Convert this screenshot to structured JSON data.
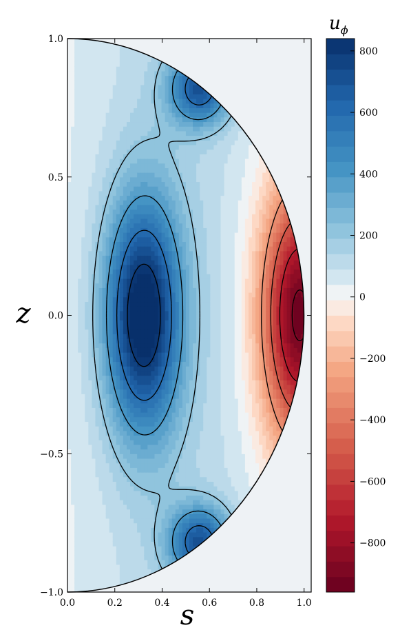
{
  "chart_data": {
    "type": "heatmap",
    "subtype": "filled-contour meridional section with line contours",
    "title": "",
    "xlabel": "s",
    "ylabel": "z",
    "xlim": [
      0.0,
      1.03
    ],
    "ylim": [
      -1.0,
      1.0
    ],
    "x_ticks": [
      0.0,
      0.2,
      0.4,
      0.6,
      0.8,
      1.0
    ],
    "x_tick_labels": [
      "0.0",
      "0.2",
      "0.4",
      "0.6",
      "0.8",
      "1.0"
    ],
    "y_ticks": [
      -1.0,
      -0.5,
      0.0,
      0.5,
      1.0
    ],
    "y_tick_labels": [
      "−1.0",
      "−0.5",
      "0.0",
      "0.5",
      "1.0"
    ],
    "domain_shape": "half-disk s^2 + z^2 <= 1, s >= 0",
    "colorbar": {
      "label_main": "u",
      "label_sub": "ϕ",
      "range": [
        -960,
        840
      ],
      "ticks": [
        800,
        600,
        400,
        200,
        0,
        -200,
        -400,
        -600,
        -800
      ],
      "tick_labels": [
        "800",
        "600",
        "400",
        "200",
        "0",
        "−200",
        "−400",
        "−600",
        "−800"
      ],
      "levels": 36,
      "colormap": "RdBu (positive blue, negative red)",
      "color_positive": "#08306b",
      "color_zero": "#f7f7f7",
      "color_negative": "#67001f"
    },
    "features": [
      {
        "name": "central positive cell",
        "s": 0.32,
        "z": 0.0,
        "value": 840
      },
      {
        "name": "upper positive cell",
        "s": 0.56,
        "z": 0.82,
        "value": 600
      },
      {
        "name": "lower positive cell",
        "s": 0.56,
        "z": -0.82,
        "value": 600
      },
      {
        "name": "equatorial negative jet",
        "s": 0.98,
        "z": 0.0,
        "value": -960
      }
    ],
    "contour_levels_drawn": [
      -900,
      -700,
      -500,
      -300,
      200,
      400,
      600,
      800
    ],
    "grid": false,
    "legend": "none"
  }
}
